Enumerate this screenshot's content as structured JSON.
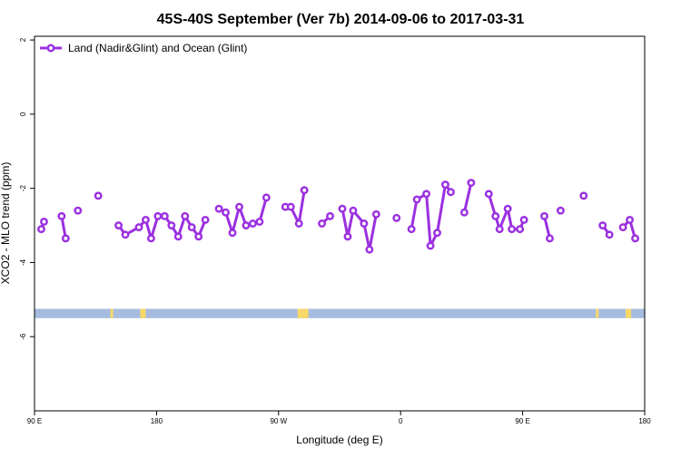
{
  "chart_data": {
    "type": "line",
    "title": "45S-40S September (Ver 7b)   2014-09-06 to 2017-03-31",
    "xlabel": "Longitude (deg E)",
    "ylabel": "XCO2 - MLO trend (ppm)",
    "xlim": [
      90,
      540
    ],
    "ylim": [
      -8,
      2.1
    ],
    "x_ticks": [
      {
        "value": 90,
        "label": "90 E"
      },
      {
        "value": 180,
        "label": "180"
      },
      {
        "value": 270,
        "label": "90 W"
      },
      {
        "value": 360,
        "label": "0"
      },
      {
        "value": 450,
        "label": "90 E"
      },
      {
        "value": 540,
        "label": "180"
      }
    ],
    "y_ticks": [
      {
        "value": 2,
        "label": "2"
      },
      {
        "value": 0,
        "label": "0"
      },
      {
        "value": -2,
        "label": "-2"
      },
      {
        "value": -4,
        "label": "-4"
      },
      {
        "value": -6,
        "label": "-6"
      }
    ],
    "legend": {
      "position": "top-left"
    },
    "series": [
      {
        "name": "Land (Nadir&Glint) and Ocean (Glint)",
        "color": "#9b30e0",
        "segments": [
          [
            [
              95,
              -3.1
            ],
            [
              97,
              -2.9
            ]
          ],
          [
            [
              110,
              -2.75
            ],
            [
              113,
              -3.35
            ]
          ],
          [
            [
              122,
              -2.6
            ]
          ],
          [
            [
              137,
              -2.2
            ]
          ],
          [
            [
              152,
              -3.0
            ],
            [
              157,
              -3.25
            ],
            [
              167,
              -3.05
            ],
            [
              172,
              -2.85
            ],
            [
              176,
              -3.35
            ],
            [
              181,
              -2.75
            ],
            [
              186,
              -2.75
            ],
            [
              191,
              -3.0
            ],
            [
              196,
              -3.3
            ],
            [
              201,
              -2.75
            ],
            [
              206,
              -3.05
            ],
            [
              211,
              -3.3
            ],
            [
              216,
              -2.85
            ]
          ],
          [
            [
              226,
              -2.55
            ],
            [
              231,
              -2.65
            ],
            [
              236,
              -3.2
            ],
            [
              241,
              -2.5
            ],
            [
              246,
              -3.0
            ],
            [
              251,
              -2.95
            ],
            [
              256,
              -2.9
            ],
            [
              261,
              -2.25
            ]
          ],
          [
            [
              275,
              -2.5
            ],
            [
              279,
              -2.5
            ],
            [
              285,
              -2.95
            ],
            [
              289,
              -2.05
            ]
          ],
          [
            [
              302,
              -2.95
            ],
            [
              308,
              -2.75
            ]
          ],
          [
            [
              317,
              -2.55
            ],
            [
              321,
              -3.3
            ],
            [
              325,
              -2.6
            ],
            [
              333,
              -2.95
            ],
            [
              337,
              -3.65
            ],
            [
              342,
              -2.7
            ]
          ],
          [
            [
              357,
              -2.8
            ]
          ],
          [
            [
              368,
              -3.1
            ],
            [
              372,
              -2.3
            ],
            [
              379,
              -2.15
            ],
            [
              382,
              -3.55
            ],
            [
              387,
              -3.2
            ],
            [
              393,
              -1.9
            ],
            [
              397,
              -2.1
            ]
          ],
          [
            [
              407,
              -2.65
            ],
            [
              412,
              -1.85
            ]
          ],
          [
            [
              425,
              -2.15
            ],
            [
              430,
              -2.75
            ],
            [
              433,
              -3.1
            ],
            [
              439,
              -2.55
            ],
            [
              442,
              -3.1
            ],
            [
              448,
              -3.1
            ],
            [
              451,
              -2.85
            ]
          ],
          [
            [
              466,
              -2.75
            ],
            [
              470,
              -3.35
            ]
          ],
          [
            [
              478,
              -2.6
            ]
          ],
          [
            [
              495,
              -2.2
            ]
          ],
          [
            [
              509,
              -3.0
            ],
            [
              514,
              -3.25
            ]
          ],
          [
            [
              524,
              -3.05
            ],
            [
              529,
              -2.85
            ],
            [
              533,
              -3.35
            ]
          ]
        ]
      }
    ],
    "land_ocean_band": {
      "y_range": [
        -5.5,
        -5.25
      ],
      "ocean_color": "#a6bcdf",
      "land_color": "#f7d868",
      "land_x": [
        [
          146,
          148
        ],
        [
          168,
          172
        ],
        [
          284,
          292
        ],
        [
          504,
          506
        ],
        [
          526,
          530
        ]
      ]
    }
  }
}
